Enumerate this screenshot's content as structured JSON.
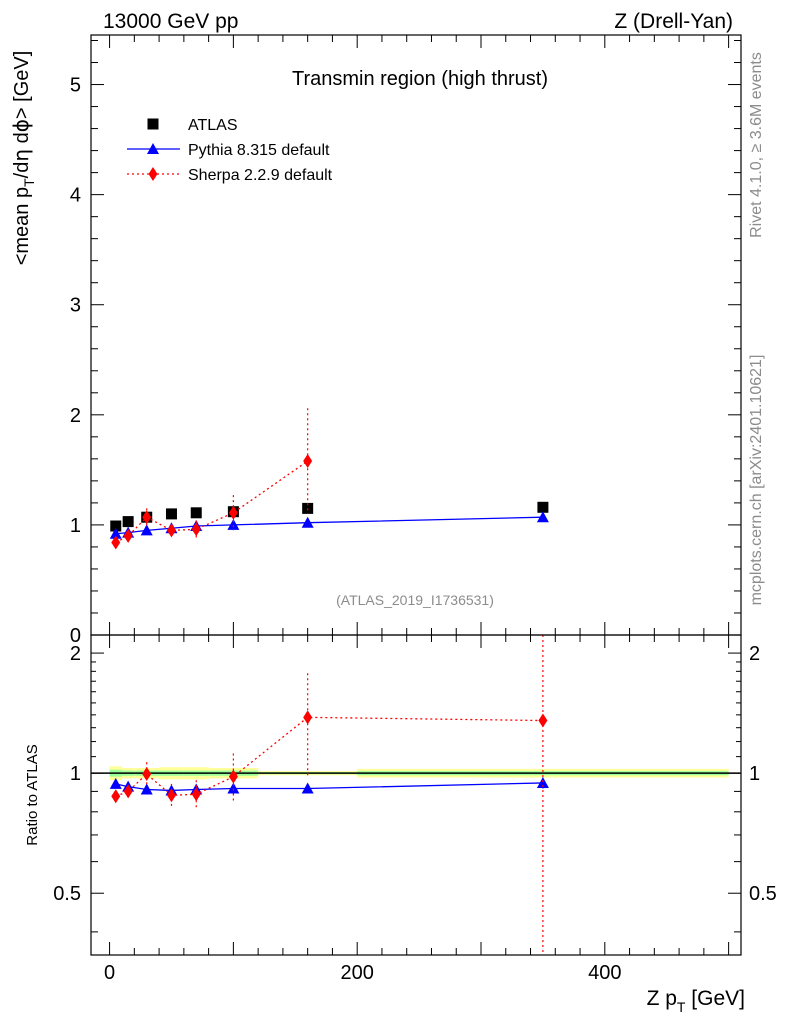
{
  "header": {
    "left": "13000 GeV pp",
    "right": "Z (Drell-Yan)"
  },
  "side_labels": {
    "rivet": "Rivet 4.1.0, ≥ 3.6M events",
    "mcplots": "mcplots.cern.ch [arXiv:2401.10621]"
  },
  "colors": {
    "atlas": "#000000",
    "pythia": "#0000ff",
    "sherpa": "#ff0000",
    "band_outer": "#ffff99",
    "band_inner": "#99ff99"
  },
  "chart_data": [
    {
      "type": "scatter",
      "title": "Transmin region (high thrust)",
      "watermark": "(ATLAS_2019_I1736531)",
      "xlabel": "Z p_T [GeV]",
      "ylabel": "<mean p_T/dη dϕ> [GeV]",
      "xlim": [
        -15,
        510
      ],
      "ylim": [
        0,
        5.45
      ],
      "yticks": [
        {
          "value": 0,
          "label": "0"
        },
        {
          "value": 1,
          "label": "1"
        },
        {
          "value": 2,
          "label": "2"
        },
        {
          "value": 3,
          "label": "3"
        },
        {
          "value": 4,
          "label": "4"
        },
        {
          "value": 5,
          "label": "5"
        }
      ],
      "legend": {
        "position": "top-left",
        "entries": [
          {
            "label": "ATLAS",
            "marker": "square",
            "color": "#000000"
          },
          {
            "label": "Pythia 8.315 default",
            "marker": "triangle",
            "color": "#0000ff"
          },
          {
            "label": "Sherpa 2.2.9 default",
            "marker": "diamond",
            "color": "#ff0000"
          }
        ]
      },
      "series": [
        {
          "name": "ATLAS",
          "marker": "square",
          "color": "#000000",
          "line": "none",
          "points": [
            {
              "x": 5,
              "y": 0.99
            },
            {
              "x": 15,
              "y": 1.03
            },
            {
              "x": 30,
              "y": 1.07
            },
            {
              "x": 50,
              "y": 1.1
            },
            {
              "x": 70,
              "y": 1.11
            },
            {
              "x": 100,
              "y": 1.12
            },
            {
              "x": 160,
              "y": 1.15
            },
            {
              "x": 350,
              "y": 1.16
            }
          ]
        },
        {
          "name": "Pythia 8.315 default",
          "marker": "triangle",
          "color": "#0000ff",
          "line": "solid",
          "points": [
            {
              "x": 5,
              "y": 0.92,
              "err": 0.02
            },
            {
              "x": 15,
              "y": 0.93,
              "err": 0.02
            },
            {
              "x": 30,
              "y": 0.95,
              "err": 0.01
            },
            {
              "x": 50,
              "y": 0.97,
              "err": 0.01
            },
            {
              "x": 70,
              "y": 0.99,
              "err": 0.01
            },
            {
              "x": 100,
              "y": 1.0,
              "err": 0.01
            },
            {
              "x": 160,
              "y": 1.02,
              "err": 0.01
            },
            {
              "x": 350,
              "y": 1.07,
              "err": 0.02
            }
          ]
        },
        {
          "name": "Sherpa 2.2.9 default",
          "marker": "diamond",
          "color": "#ff0000",
          "line": "dotted",
          "points": [
            {
              "x": 5,
              "y": 0.84,
              "err": 0.03
            },
            {
              "x": 15,
              "y": 0.9,
              "err": 0.03
            },
            {
              "x": 30,
              "y": 1.07,
              "err": 0.08
            },
            {
              "x": 50,
              "y": 0.95,
              "err": 0.06
            },
            {
              "x": 70,
              "y": 0.96,
              "err": 0.08
            },
            {
              "x": 100,
              "y": 1.11,
              "err": 0.16
            },
            {
              "x": 160,
              "y": 1.58,
              "err": 0.48
            }
          ]
        }
      ]
    },
    {
      "type": "scatter",
      "ylabel": "Ratio to ATLAS",
      "xlabel": "Z p_T [GeV]",
      "xlim": [
        -15,
        510
      ],
      "ylim": [
        0.35,
        2.22
      ],
      "xticks": [
        {
          "value": 0,
          "label": "0"
        },
        {
          "value": 200,
          "label": "200"
        },
        {
          "value": 400,
          "label": "400"
        }
      ],
      "yticks": [
        {
          "value": 0.5,
          "label": "0.5"
        },
        {
          "value": 1,
          "label": "1"
        },
        {
          "value": 2,
          "label": "2"
        }
      ],
      "reference": 1,
      "band": [
        {
          "x0": 0,
          "x1": 10,
          "outer": 0.04,
          "inner": 0.02
        },
        {
          "x0": 10,
          "x1": 20,
          "outer": 0.03,
          "inner": 0.015
        },
        {
          "x0": 20,
          "x1": 40,
          "outer": 0.03,
          "inner": 0.015
        },
        {
          "x0": 40,
          "x1": 60,
          "outer": 0.035,
          "inner": 0.015
        },
        {
          "x0": 60,
          "x1": 80,
          "outer": 0.035,
          "inner": 0.015
        },
        {
          "x0": 80,
          "x1": 120,
          "outer": 0.03,
          "inner": 0.015
        },
        {
          "x0": 120,
          "x1": 200,
          "outer": 0.012,
          "inner": 0.006
        },
        {
          "x0": 200,
          "x1": 500,
          "outer": 0.025,
          "inner": 0.012
        }
      ],
      "series": [
        {
          "name": "Pythia 8.315 default",
          "marker": "triangle",
          "color": "#0000ff",
          "line": "solid",
          "points": [
            {
              "x": 5,
              "y": 0.94,
              "err": 0.015
            },
            {
              "x": 15,
              "y": 0.925,
              "err": 0.015
            },
            {
              "x": 30,
              "y": 0.91,
              "err": 0.01
            },
            {
              "x": 50,
              "y": 0.905,
              "err": 0.01
            },
            {
              "x": 70,
              "y": 0.91,
              "err": 0.01
            },
            {
              "x": 100,
              "y": 0.915,
              "err": 0.01
            },
            {
              "x": 160,
              "y": 0.915,
              "err": 0.01
            },
            {
              "x": 350,
              "y": 0.945,
              "err": 0.03
            }
          ]
        },
        {
          "name": "Sherpa 2.2.9 default",
          "marker": "diamond",
          "color": "#ff0000",
          "line": "dotted",
          "points": [
            {
              "x": 5,
              "y": 0.875,
              "err": 0.03
            },
            {
              "x": 15,
              "y": 0.9,
              "err": 0.03
            },
            {
              "x": 30,
              "y": 0.995,
              "err": 0.07
            },
            {
              "x": 50,
              "y": 0.88,
              "err": 0.06
            },
            {
              "x": 70,
              "y": 0.885,
              "err": 0.075
            },
            {
              "x": 100,
              "y": 0.98,
              "err": 0.14
            },
            {
              "x": 160,
              "y": 1.38,
              "err": 0.4
            },
            {
              "x": 350,
              "y": 1.355,
              "err": 1.0
            }
          ]
        }
      ]
    }
  ]
}
